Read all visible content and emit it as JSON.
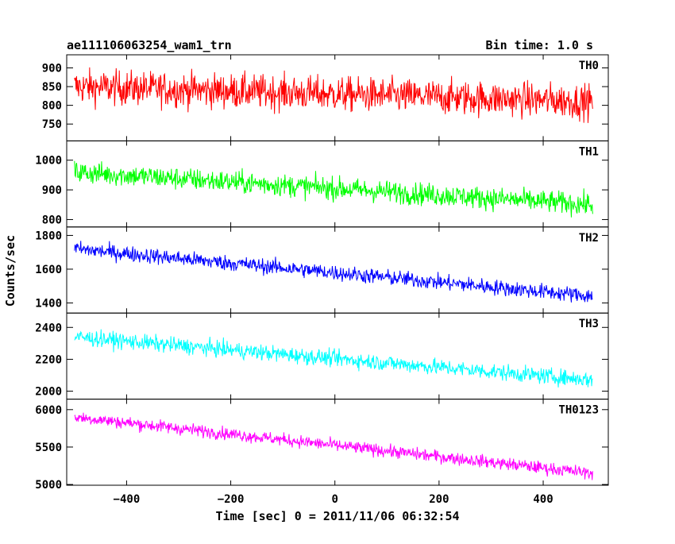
{
  "header": {
    "title": "ae111106063254_wam1_trn",
    "bin_time": "Bin time: 1.0 s"
  },
  "chart_data": {
    "type": "line",
    "title": "ae111106063254_wam1_trn",
    "subtitle": "Bin time: 1.0 s",
    "xlabel": "Time [sec] 0 = 2011/11/06 06:32:54",
    "ylabel": "Counts/sec",
    "xlim": [
      -515,
      525
    ],
    "xticks": [
      -400,
      -200,
      0,
      200,
      400
    ],
    "xtick_labels": [
      "−400",
      "−200",
      "0",
      "200",
      "400"
    ],
    "grid": false,
    "series": [
      {
        "name": "TH0",
        "color": "#ff0000",
        "ylim": [
          705,
          935
        ],
        "yticks": [
          750,
          800,
          850,
          900
        ],
        "ytick_labels": [
          "750",
          "800",
          "850",
          "900"
        ],
        "x_range": [
          -500,
          495
        ],
        "trend": [
          850,
          810
        ],
        "noise": 55
      },
      {
        "name": "TH1",
        "color": "#00ff00",
        "ylim": [
          775,
          1065
        ],
        "yticks": [
          800,
          900,
          1000
        ],
        "ytick_labels": [
          "800",
          "900",
          "1000"
        ],
        "x_range": [
          -500,
          495
        ],
        "trend": [
          960,
          850
        ],
        "noise": 45
      },
      {
        "name": "TH2",
        "color": "#0000ff",
        "ylim": [
          1340,
          1850
        ],
        "yticks": [
          1400,
          1600,
          1800
        ],
        "ytick_labels": [
          "1400",
          "1600",
          "1800"
        ],
        "x_range": [
          -500,
          495
        ],
        "trend": [
          1720,
          1440
        ],
        "noise": 55
      },
      {
        "name": "TH3",
        "color": "#00ffff",
        "ylim": [
          1950,
          2490
        ],
        "yticks": [
          2000,
          2200,
          2400
        ],
        "ytick_labels": [
          "2000",
          "2200",
          "2400"
        ],
        "x_range": [
          -500,
          495
        ],
        "trend": [
          2340,
          2070
        ],
        "noise": 60
      },
      {
        "name": "TH0123",
        "color": "#ff00ff",
        "ylim": [
          4990,
          6140
        ],
        "yticks": [
          5000,
          5500,
          6000
        ],
        "ytick_labels": [
          "5000",
          "5500",
          "6000"
        ],
        "x_range": [
          -500,
          495
        ],
        "trend": [
          5900,
          5150
        ],
        "noise": 100
      }
    ]
  }
}
